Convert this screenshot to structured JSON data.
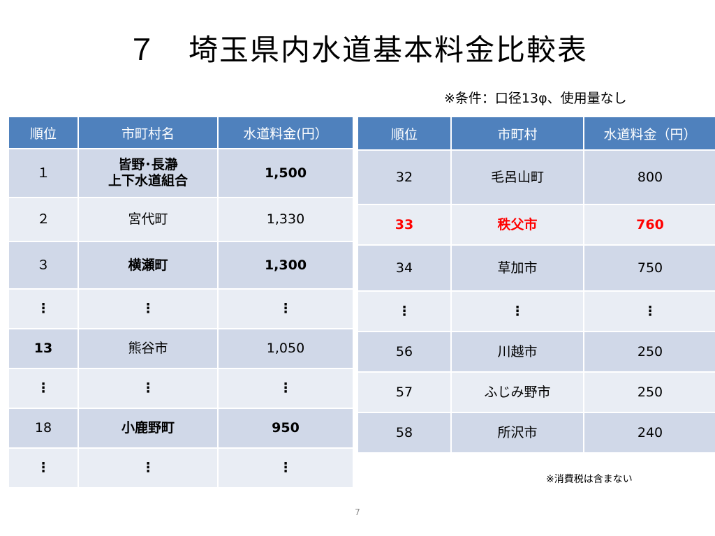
{
  "slide": {
    "title": "７　埼玉県内水道基本料金比較表",
    "condition": "※条件：口径13φ、使用量なし",
    "note": "※消費税は含まない",
    "page_number": "7"
  },
  "left_table": {
    "headers": [
      "順位",
      "市町村名",
      "水道料金(円）"
    ],
    "rows": [
      [
        "１",
        "皆野･長瀞\n上下水道組合",
        "1,500"
      ],
      [
        "２",
        "宮代町",
        "1,330"
      ],
      [
        "３",
        "横瀬町",
        "1,300"
      ],
      [
        "⋮",
        "⋮",
        "⋮"
      ],
      [
        "13",
        "熊谷市",
        "1,050"
      ],
      [
        "⋮",
        "⋮",
        "⋮"
      ],
      [
        "18",
        "小鹿野町",
        "950"
      ],
      [
        "⋮",
        "⋮",
        "⋮"
      ]
    ]
  },
  "right_table": {
    "headers": [
      "順位",
      "市町村",
      "水道料金（円）"
    ],
    "rows": [
      [
        "32",
        "毛呂山町",
        "800"
      ],
      [
        "33",
        "秩父市",
        "760"
      ],
      [
        "34",
        "草加市",
        "750"
      ],
      [
        "⋮",
        "⋮",
        "⋮"
      ],
      [
        "56",
        "川越市",
        "250"
      ],
      [
        "57",
        "ふじみ野市",
        "250"
      ],
      [
        "58",
        "所沢市",
        "240"
      ]
    ]
  },
  "colors": {
    "header_bg": "#4f81bd",
    "row_odd": "#d0d8e8",
    "row_even": "#e9edf4",
    "highlight": "#ff0000"
  }
}
